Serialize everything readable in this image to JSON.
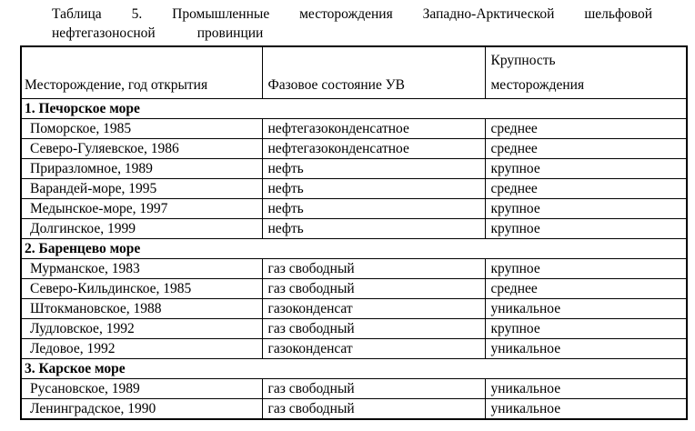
{
  "title": {
    "line1": "Таблица 5. Промышленные месторождения Западно-Арктической шельфовой",
    "line2_part1": "нефтегазоносной",
    "line2_part2": "провинции"
  },
  "table": {
    "columns": [
      "Месторождение, год открытия",
      "Фазовое состояние УВ",
      "Крупность месторождения"
    ],
    "sections": [
      {
        "header": "1. Печорское море",
        "rows": [
          [
            "Поморское, 1985",
            "нефтегазоконденсатное",
            "среднее"
          ],
          [
            "Северо-Гуляевское, 1986",
            "нефтегазоконденсатное",
            "среднее"
          ],
          [
            "Приразломное, 1989",
            "нефть",
            "крупное"
          ],
          [
            "Варандей-море, 1995",
            "нефть",
            "среднее"
          ],
          [
            "Медынское-море, 1997",
            "нефть",
            "крупное"
          ],
          [
            "Долгинское, 1999",
            "нефть",
            "крупное"
          ]
        ]
      },
      {
        "header": "2. Баренцево море",
        "rows": [
          [
            "Мурманское, 1983",
            "газ свободный",
            "крупное"
          ],
          [
            "Северо-Кильдинское, 1985",
            "газ свободный",
            "среднее"
          ],
          [
            "Штокмановское, 1988",
            "газоконденсат",
            "уникальное"
          ],
          [
            "Лудловское, 1992",
            "газ свободный",
            "крупное"
          ],
          [
            "Ледовое, 1992",
            "газоконденсат",
            "уникальное"
          ]
        ]
      },
      {
        "header": "3. Карское море",
        "rows": [
          [
            "Русановское, 1989",
            "газ свободный",
            "уникальное"
          ],
          [
            "Ленинградское, 1990",
            "газ свободный",
            "уникальное"
          ]
        ]
      }
    ]
  },
  "colors": {
    "text": "#000000",
    "border": "#000000",
    "background": "#ffffff"
  }
}
